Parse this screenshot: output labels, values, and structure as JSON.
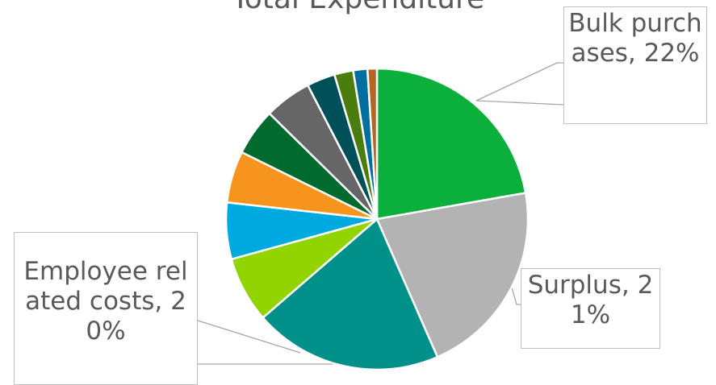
{
  "chart_data": {
    "type": "pie",
    "title": "Total Expenditure",
    "categories": [
      "Bulk purchases",
      "Surplus",
      "Employee related costs",
      null,
      null,
      null,
      null,
      null,
      null,
      null,
      null,
      null
    ],
    "values": [
      22,
      21,
      20,
      7,
      6,
      5.5,
      5,
      5,
      3,
      2,
      1.5,
      1
    ],
    "value_labels": [
      "22%",
      "21%",
      "20%",
      null,
      null,
      null,
      null,
      null,
      null,
      null,
      null,
      null
    ],
    "label_separator": ", ",
    "colors": [
      "#0aaf3c",
      "#b3b3b3",
      "#00908a",
      "#92d400",
      "#00a9e0",
      "#f7941d",
      "#006a2f",
      "#666666",
      "#00505a",
      "#4b7d0e",
      "#006f9f",
      "#b5651d"
    ]
  }
}
